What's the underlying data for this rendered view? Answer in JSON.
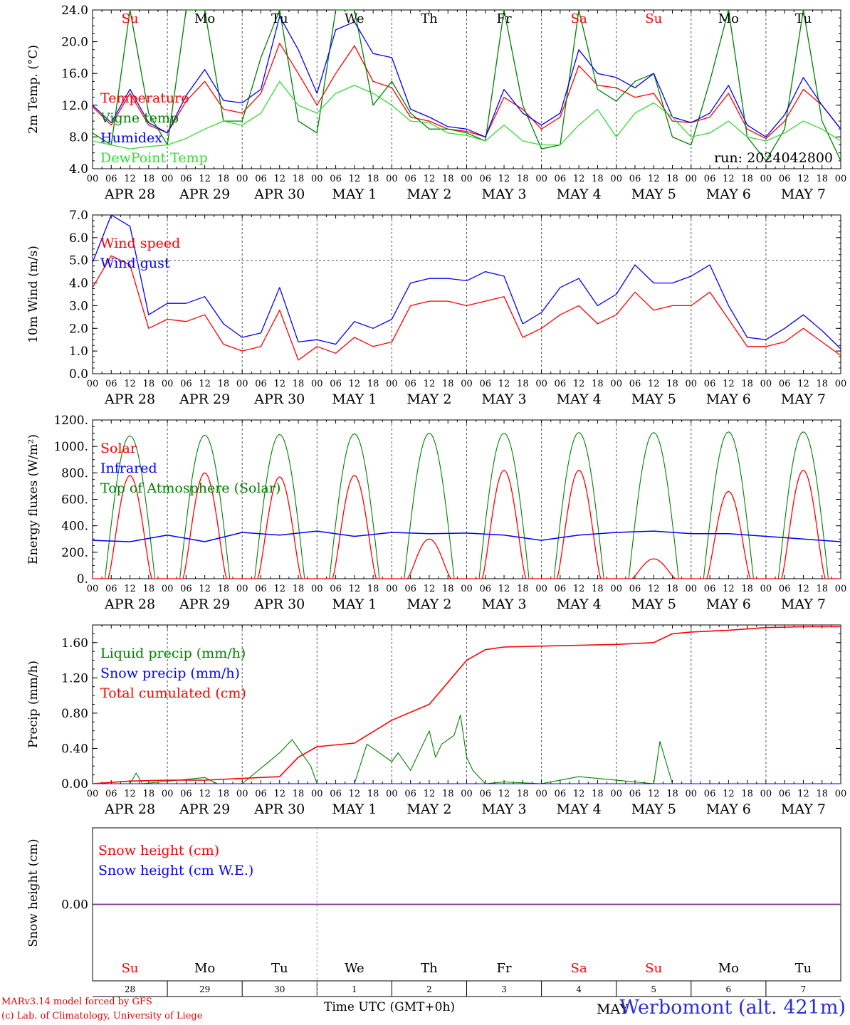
{
  "credits": {
    "line1": "MARv3.14 model forced by GFS",
    "line2": "(c) Lab. of Climatology, University of Liege"
  },
  "footer": {
    "xtitle": "Time UTC (GMT+0h)",
    "station": "Werbomont (alt. 421m)",
    "month": "MAY"
  },
  "colors": {
    "red": "#ff0000",
    "green": "#008000",
    "blue": "#0000ff",
    "lightgreen": "#33dd33",
    "purple": "#7b2d9b",
    "grid": "#555555"
  },
  "chart_data": [
    {
      "type": "line",
      "ylabel": "2m Temp. (°C)",
      "yticks": [
        "4.0",
        "8.0",
        "12.0",
        "16.0",
        "20.0",
        "24.0"
      ],
      "ylim": [
        4,
        24
      ],
      "annotation": "run: 2024042800",
      "day_names": [
        "Su",
        "Mo",
        "Tu",
        "We",
        "Th",
        "Fr",
        "Sa",
        "Su",
        "Mo",
        "Tu"
      ],
      "day_name_colors": [
        "red",
        "black",
        "black",
        "black",
        "black",
        "black",
        "red",
        "red",
        "black",
        "black"
      ],
      "date_labels": [
        "APR 28",
        "APR 29",
        "APR 30",
        "MAY  1",
        "MAY  2",
        "MAY  3",
        "MAY  4",
        "MAY  5",
        "MAY  6",
        "MAY  7"
      ],
      "hour_labels": [
        "00",
        "06",
        "12",
        "18"
      ],
      "x_hours": [
        0,
        6,
        12,
        18,
        24,
        30,
        36,
        42,
        48,
        54,
        60,
        66,
        72,
        78,
        84,
        90,
        96,
        102,
        108,
        114,
        120,
        126,
        132,
        138,
        144,
        150,
        156,
        162,
        168,
        174,
        180,
        186,
        192,
        198,
        204,
        210,
        216,
        222,
        228,
        234,
        240
      ],
      "series": [
        {
          "name": "Temperature",
          "color": "red",
          "values": [
            11.8,
            9.5,
            13.5,
            9.5,
            8.5,
            12.5,
            15,
            11.5,
            11,
            13.5,
            19.8,
            16,
            12,
            16,
            19.5,
            15,
            14.2,
            10.5,
            10,
            9,
            8.7,
            8,
            13,
            11.5,
            9,
            10.5,
            17,
            14.5,
            14.2,
            13,
            13.5,
            10,
            9.8,
            10.5,
            13.5,
            9,
            7.8,
            10,
            14,
            12,
            9
          ]
        },
        {
          "name": "Vigne temp",
          "color": "green",
          "values": [
            8.5,
            7,
            24,
            11,
            7,
            24,
            24,
            10,
            10,
            18,
            24,
            10,
            8.5,
            24,
            24,
            12,
            15,
            11,
            9,
            9,
            8.5,
            7.5,
            24,
            12,
            6.5,
            7,
            24,
            14,
            12.5,
            15,
            16,
            8,
            7,
            15,
            24,
            8,
            5,
            9,
            24,
            10,
            5
          ]
        },
        {
          "name": "Humidex",
          "color": "blue",
          "values": [
            12,
            9.8,
            14,
            9.8,
            8.5,
            13.2,
            16.5,
            12.6,
            12.3,
            14,
            23.2,
            19,
            13.5,
            21.5,
            22.5,
            18.5,
            18,
            11.5,
            10.5,
            9.3,
            9,
            8,
            14,
            11,
            9.5,
            11,
            19,
            16,
            15.5,
            14.2,
            16,
            10.5,
            9.8,
            11,
            14.5,
            9.5,
            8,
            10.8,
            15.5,
            12,
            9
          ]
        },
        {
          "name": "DewPoint Temp",
          "color": "lightgreen",
          "values": [
            7.5,
            7,
            6.5,
            6.8,
            7,
            7.8,
            9,
            10,
            9.5,
            11,
            15,
            12,
            11,
            13.5,
            14.5,
            13.5,
            12,
            10,
            9.8,
            8.5,
            8.2,
            7.5,
            9.5,
            7.5,
            7,
            7,
            9.5,
            11.5,
            8,
            11,
            12.3,
            10.5,
            8,
            8.5,
            10,
            8,
            7.5,
            8.5,
            10,
            9,
            7.5
          ]
        }
      ]
    },
    {
      "type": "line",
      "ylabel": "10m Wind (m/s)",
      "yticks": [
        "0.0",
        "1.0",
        "2.0",
        "3.0",
        "4.0",
        "5.0",
        "6.0",
        "7.0"
      ],
      "ylim": [
        0,
        7
      ],
      "reference_line": 5.0,
      "date_labels": [
        "APR 28",
        "APR 29",
        "APR 30",
        "MAY  1",
        "MAY  2",
        "MAY  3",
        "MAY  4",
        "MAY  5",
        "MAY  6",
        "MAY  7"
      ],
      "hour_labels": [
        "00",
        "06",
        "12",
        "18"
      ],
      "x_hours": [
        0,
        6,
        12,
        18,
        24,
        30,
        36,
        42,
        48,
        54,
        60,
        66,
        72,
        78,
        84,
        90,
        96,
        102,
        108,
        114,
        120,
        126,
        132,
        138,
        144,
        150,
        156,
        162,
        168,
        174,
        180,
        186,
        192,
        198,
        204,
        210,
        216,
        222,
        228,
        234,
        240
      ],
      "series": [
        {
          "name": "Wind speed",
          "color": "red",
          "values": [
            3.8,
            5.2,
            4.8,
            2,
            2.4,
            2.3,
            2.6,
            1.3,
            1,
            1.2,
            2.8,
            0.6,
            1.2,
            0.9,
            1.6,
            1.2,
            1.4,
            3,
            3.2,
            3.2,
            3,
            3.2,
            3.4,
            1.6,
            2,
            2.6,
            3,
            2.2,
            2.6,
            3.6,
            2.8,
            3,
            3,
            3.6,
            2.4,
            1.2,
            1.2,
            1.4,
            2,
            1.4,
            0.8
          ]
        },
        {
          "name": "Wind gust",
          "color": "blue",
          "values": [
            4.9,
            7,
            6.5,
            2.6,
            3.1,
            3.1,
            3.4,
            2.2,
            1.6,
            1.8,
            3.8,
            1.4,
            1.5,
            1.3,
            2.3,
            2,
            2.4,
            4,
            4.2,
            4.2,
            4.1,
            4.5,
            4.3,
            2.2,
            2.7,
            3.8,
            4.2,
            3,
            3.5,
            4.8,
            4,
            4,
            4.3,
            4.8,
            3,
            1.6,
            1.5,
            2,
            2.6,
            1.9,
            1.1
          ]
        }
      ]
    },
    {
      "type": "line",
      "ylabel": "Energy fluxes (W/m²)",
      "yticks": [
        "0.",
        "200.",
        "400.",
        "600.",
        "800.",
        "1000.",
        "1200."
      ],
      "ylim": [
        0,
        1200
      ],
      "date_labels": [
        "APR 28",
        "APR 29",
        "APR 30",
        "MAY  1",
        "MAY  2",
        "MAY  3",
        "MAY  4",
        "MAY  5",
        "MAY  6",
        "MAY  7"
      ],
      "hour_labels": [
        "00",
        "06",
        "12",
        "18"
      ],
      "daily_peaks": {
        "Solar": [
          780,
          800,
          770,
          780,
          300,
          820,
          820,
          150,
          660,
          820
        ],
        "Top of Atmosphere (Solar)": [
          1080,
          1085,
          1090,
          1095,
          1100,
          1100,
          1105,
          1105,
          1110,
          1110
        ]
      },
      "series": [
        {
          "name": "Infrared",
          "color": "blue",
          "x": [
            0,
            12,
            24,
            36,
            48,
            60,
            72,
            84,
            96,
            108,
            120,
            132,
            144,
            156,
            168,
            180,
            192,
            204,
            216,
            228,
            240
          ],
          "values": [
            290,
            280,
            330,
            280,
            350,
            330,
            360,
            320,
            350,
            340,
            345,
            330,
            290,
            330,
            350,
            360,
            340,
            340,
            320,
            300,
            280
          ]
        }
      ]
    },
    {
      "type": "line",
      "ylabel": "Precip (mm/h)",
      "yticks": [
        "0.00",
        "0.40",
        "0.80",
        "1.20",
        "1.60"
      ],
      "ylim": [
        0,
        1.8
      ],
      "date_labels": [
        "APR 28",
        "APR 29",
        "APR 30",
        "MAY  1",
        "MAY  2",
        "MAY  3",
        "MAY  4",
        "MAY  5",
        "MAY  6",
        "MAY  7"
      ],
      "hour_labels": [
        "00",
        "06",
        "12",
        "18"
      ],
      "series": [
        {
          "name": "Liquid precip (mm/h)",
          "color": "green",
          "x": [
            0,
            12,
            14,
            16,
            36,
            40,
            48,
            60,
            64,
            70,
            72,
            84,
            88,
            96,
            98,
            102,
            108,
            110,
            112,
            116,
            118,
            120,
            122,
            126,
            132,
            144,
            156,
            180,
            182,
            186,
            240
          ],
          "values": [
            0,
            0,
            0.12,
            0,
            0.07,
            0,
            0,
            0.35,
            0.5,
            0.2,
            0,
            0,
            0.45,
            0.25,
            0.35,
            0.15,
            0.6,
            0.3,
            0.45,
            0.55,
            0.78,
            0.3,
            0.15,
            0,
            0.02,
            0,
            0.08,
            0,
            0.48,
            0,
            0
          ]
        },
        {
          "name": "Snow precip (mm/h)",
          "color": "blue",
          "x": [
            0,
            240
          ],
          "values": [
            0,
            0
          ]
        },
        {
          "name": "Total cumulated (cm)",
          "color": "red",
          "x": [
            0,
            12,
            24,
            36,
            48,
            60,
            66,
            72,
            84,
            96,
            108,
            120,
            126,
            132,
            144,
            156,
            168,
            180,
            186,
            192,
            204,
            216,
            228,
            240
          ],
          "values": [
            0,
            0.03,
            0.04,
            0.04,
            0.06,
            0.08,
            0.3,
            0.42,
            0.46,
            0.72,
            0.9,
            1.4,
            1.52,
            1.55,
            1.56,
            1.57,
            1.58,
            1.6,
            1.7,
            1.72,
            1.74,
            1.77,
            1.78,
            1.78
          ]
        }
      ]
    },
    {
      "type": "line",
      "ylabel": "Snow height (cm)",
      "yticks": [
        "0.00"
      ],
      "ylim": [
        -1,
        1
      ],
      "day_names": [
        "Su",
        "Mo",
        "Tu",
        "We",
        "Th",
        "Fr",
        "Sa",
        "Su",
        "Mo",
        "Tu"
      ],
      "day_name_colors": [
        "red",
        "black",
        "black",
        "black",
        "black",
        "black",
        "red",
        "red",
        "black",
        "black"
      ],
      "day_numbers": [
        "28",
        "29",
        "30",
        "1",
        "2",
        "3",
        "4",
        "5",
        "6",
        "7"
      ],
      "series": [
        {
          "name": "Snow height (cm)",
          "color": "red",
          "x": [
            0,
            240
          ],
          "values": [
            0,
            0
          ]
        },
        {
          "name": "Snow height (cm W.E.)",
          "color": "blue",
          "x": [
            0,
            240
          ],
          "values": [
            0,
            0
          ]
        }
      ]
    }
  ]
}
